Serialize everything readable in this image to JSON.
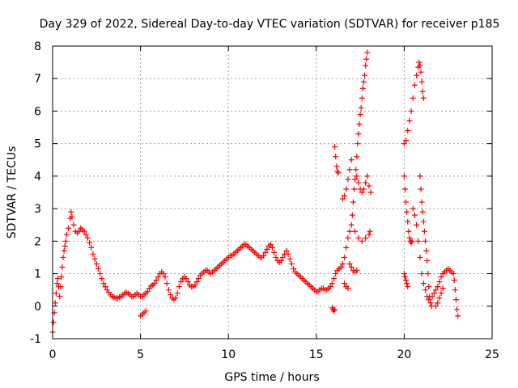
{
  "chart_data": {
    "type": "scatter",
    "title": "Day 329 of 2022, Sidereal Day-to-day VTEC variation (SDTVAR) for receiver p185",
    "xlabel": "GPS time / hours",
    "ylabel": "SDTVAR / TECUs",
    "xlim": [
      0,
      25
    ],
    "ylim": [
      -1,
      8
    ],
    "x_ticks": [
      0,
      5,
      10,
      15,
      20,
      25
    ],
    "y_ticks": [
      -1,
      0,
      1,
      2,
      3,
      4,
      5,
      6,
      7,
      8
    ],
    "x_tick_labels": [
      "0",
      "5",
      "10",
      "15",
      "20",
      "25"
    ],
    "y_tick_labels": [
      "-1",
      "0",
      "1",
      "2",
      "3",
      "4",
      "5",
      "6",
      "7",
      "8"
    ],
    "grid": true,
    "marker": "plus",
    "color": "#ff0000",
    "series": [
      {
        "name": "SDTVAR",
        "points": [
          [
            0.0,
            -0.8
          ],
          [
            0.05,
            -0.5
          ],
          [
            0.1,
            -0.2
          ],
          [
            0.15,
            0.1
          ],
          [
            0.2,
            0.4
          ],
          [
            0.25,
            0.7
          ],
          [
            0.3,
            0.85
          ],
          [
            0.35,
            0.6
          ],
          [
            0.4,
            0.3
          ],
          [
            0.45,
            0.6
          ],
          [
            0.5,
            0.9
          ],
          [
            0.55,
            1.2
          ],
          [
            0.6,
            1.5
          ],
          [
            0.65,
            1.7
          ],
          [
            0.7,
            1.85
          ],
          [
            0.75,
            2.0
          ],
          [
            0.8,
            2.2
          ],
          [
            0.9,
            2.4
          ],
          [
            1.0,
            2.7
          ],
          [
            1.05,
            2.9
          ],
          [
            1.1,
            2.75
          ],
          [
            1.2,
            2.5
          ],
          [
            1.3,
            2.3
          ],
          [
            1.4,
            2.25
          ],
          [
            1.5,
            2.3
          ],
          [
            1.6,
            2.4
          ],
          [
            1.7,
            2.35
          ],
          [
            1.8,
            2.3
          ],
          [
            1.9,
            2.2
          ],
          [
            2.0,
            2.1
          ],
          [
            2.1,
            1.95
          ],
          [
            2.2,
            1.8
          ],
          [
            2.3,
            1.6
          ],
          [
            2.4,
            1.45
          ],
          [
            2.5,
            1.3
          ],
          [
            2.6,
            1.15
          ],
          [
            2.7,
            1.0
          ],
          [
            2.8,
            0.85
          ],
          [
            2.9,
            0.7
          ],
          [
            3.0,
            0.6
          ],
          [
            3.1,
            0.5
          ],
          [
            3.2,
            0.42
          ],
          [
            3.3,
            0.35
          ],
          [
            3.4,
            0.3
          ],
          [
            3.5,
            0.27
          ],
          [
            3.6,
            0.25
          ],
          [
            3.7,
            0.25
          ],
          [
            3.8,
            0.28
          ],
          [
            3.9,
            0.3
          ],
          [
            4.0,
            0.35
          ],
          [
            4.1,
            0.4
          ],
          [
            4.2,
            0.42
          ],
          [
            4.3,
            0.4
          ],
          [
            4.4,
            0.35
          ],
          [
            4.5,
            0.3
          ],
          [
            4.6,
            0.3
          ],
          [
            4.7,
            0.35
          ],
          [
            4.8,
            0.4
          ],
          [
            4.9,
            0.35
          ],
          [
            5.0,
            0.3
          ],
          [
            5.1,
            0.3
          ],
          [
            5.2,
            0.35
          ],
          [
            5.3,
            0.4
          ],
          [
            5.4,
            0.45
          ],
          [
            5.5,
            0.55
          ],
          [
            5.6,
            0.62
          ],
          [
            5.7,
            0.65
          ],
          [
            5.8,
            0.7
          ],
          [
            5.9,
            0.8
          ],
          [
            6.0,
            0.9
          ],
          [
            6.1,
            1.0
          ],
          [
            6.2,
            1.05
          ],
          [
            6.3,
            1.0
          ],
          [
            6.4,
            0.9
          ],
          [
            6.5,
            0.7
          ],
          [
            6.6,
            0.5
          ],
          [
            6.7,
            0.35
          ],
          [
            6.8,
            0.25
          ],
          [
            6.9,
            0.2
          ],
          [
            7.0,
            0.25
          ],
          [
            7.1,
            0.4
          ],
          [
            7.2,
            0.6
          ],
          [
            7.3,
            0.75
          ],
          [
            7.4,
            0.85
          ],
          [
            7.5,
            0.9
          ],
          [
            7.6,
            0.85
          ],
          [
            7.7,
            0.75
          ],
          [
            7.8,
            0.65
          ],
          [
            7.9,
            0.6
          ],
          [
            8.0,
            0.6
          ],
          [
            8.1,
            0.65
          ],
          [
            8.2,
            0.75
          ],
          [
            8.3,
            0.85
          ],
          [
            8.4,
            0.95
          ],
          [
            8.5,
            1.0
          ],
          [
            8.6,
            1.05
          ],
          [
            8.7,
            1.1
          ],
          [
            8.8,
            1.1
          ],
          [
            8.9,
            1.05
          ],
          [
            9.0,
            1.0
          ],
          [
            9.1,
            1.05
          ],
          [
            9.2,
            1.1
          ],
          [
            9.3,
            1.15
          ],
          [
            9.4,
            1.2
          ],
          [
            9.5,
            1.25
          ],
          [
            9.6,
            1.3
          ],
          [
            9.7,
            1.35
          ],
          [
            9.8,
            1.4
          ],
          [
            9.9,
            1.45
          ],
          [
            10.0,
            1.5
          ],
          [
            10.1,
            1.55
          ],
          [
            10.2,
            1.55
          ],
          [
            10.3,
            1.6
          ],
          [
            10.4,
            1.65
          ],
          [
            10.5,
            1.7
          ],
          [
            10.6,
            1.75
          ],
          [
            10.7,
            1.8
          ],
          [
            10.8,
            1.85
          ],
          [
            10.9,
            1.9
          ],
          [
            11.0,
            1.9
          ],
          [
            11.1,
            1.85
          ],
          [
            11.2,
            1.8
          ],
          [
            11.3,
            1.75
          ],
          [
            11.4,
            1.7
          ],
          [
            11.5,
            1.65
          ],
          [
            11.6,
            1.6
          ],
          [
            11.7,
            1.55
          ],
          [
            11.8,
            1.5
          ],
          [
            11.9,
            1.5
          ],
          [
            12.0,
            1.55
          ],
          [
            12.1,
            1.65
          ],
          [
            12.2,
            1.75
          ],
          [
            12.3,
            1.85
          ],
          [
            12.4,
            1.9
          ],
          [
            12.5,
            1.8
          ],
          [
            12.6,
            1.65
          ],
          [
            12.7,
            1.5
          ],
          [
            12.8,
            1.4
          ],
          [
            12.9,
            1.35
          ],
          [
            13.0,
            1.4
          ],
          [
            13.1,
            1.5
          ],
          [
            13.2,
            1.6
          ],
          [
            13.3,
            1.7
          ],
          [
            13.4,
            1.6
          ],
          [
            13.5,
            1.45
          ],
          [
            13.6,
            1.3
          ],
          [
            13.7,
            1.15
          ],
          [
            13.8,
            1.05
          ],
          [
            13.9,
            1.0
          ],
          [
            14.0,
            0.95
          ],
          [
            14.1,
            0.9
          ],
          [
            14.2,
            0.85
          ],
          [
            14.3,
            0.8
          ],
          [
            14.4,
            0.75
          ],
          [
            14.5,
            0.7
          ],
          [
            14.6,
            0.65
          ],
          [
            14.7,
            0.6
          ],
          [
            14.8,
            0.55
          ],
          [
            14.9,
            0.5
          ],
          [
            15.0,
            0.45
          ],
          [
            15.1,
            0.45
          ],
          [
            15.2,
            0.5
          ],
          [
            15.3,
            0.55
          ],
          [
            15.4,
            0.55
          ],
          [
            15.5,
            0.5
          ],
          [
            15.6,
            0.5
          ],
          [
            15.7,
            0.55
          ],
          [
            15.8,
            0.6
          ],
          [
            15.9,
            0.7
          ],
          [
            16.0,
            0.85
          ],
          [
            16.1,
            1.0
          ],
          [
            16.2,
            1.1
          ],
          [
            16.3,
            1.15
          ],
          [
            16.4,
            1.2
          ],
          [
            16.5,
            1.3
          ],
          [
            16.6,
            1.5
          ],
          [
            16.7,
            1.8
          ],
          [
            16.8,
            2.1
          ],
          [
            16.9,
            2.3
          ],
          [
            17.0,
            2.5
          ],
          [
            17.05,
            2.8
          ],
          [
            17.1,
            3.2
          ],
          [
            17.15,
            3.6
          ],
          [
            17.2,
            3.9
          ],
          [
            17.25,
            4.2
          ],
          [
            17.3,
            4.6
          ],
          [
            17.35,
            5.0
          ],
          [
            17.4,
            5.3
          ],
          [
            17.45,
            5.6
          ],
          [
            17.5,
            5.9
          ],
          [
            17.55,
            6.1
          ],
          [
            17.6,
            6.4
          ],
          [
            17.65,
            6.7
          ],
          [
            17.7,
            6.9
          ],
          [
            17.75,
            7.1
          ],
          [
            17.8,
            7.4
          ],
          [
            17.85,
            7.6
          ],
          [
            17.9,
            7.8
          ],
          [
            17.3,
            4.0
          ],
          [
            17.4,
            3.8
          ],
          [
            17.5,
            3.6
          ],
          [
            17.6,
            3.5
          ],
          [
            17.7,
            3.6
          ],
          [
            17.8,
            3.8
          ],
          [
            17.9,
            4.0
          ],
          [
            18.0,
            3.7
          ],
          [
            18.1,
            3.5
          ],
          [
            17.0,
            4.5
          ],
          [
            16.9,
            4.2
          ],
          [
            16.8,
            3.9
          ],
          [
            16.7,
            3.6
          ],
          [
            16.6,
            3.4
          ],
          [
            16.5,
            3.3
          ],
          [
            17.2,
            2.3
          ],
          [
            17.4,
            2.1
          ],
          [
            17.6,
            2.0
          ],
          [
            17.8,
            2.1
          ],
          [
            18.0,
            2.2
          ],
          [
            18.05,
            2.3
          ],
          [
            16.9,
            1.3
          ],
          [
            17.0,
            1.2
          ],
          [
            17.1,
            1.1
          ],
          [
            17.2,
            1.05
          ],
          [
            17.3,
            1.1
          ],
          [
            16.05,
            4.9
          ],
          [
            16.1,
            4.6
          ],
          [
            16.15,
            4.3
          ],
          [
            16.2,
            4.15
          ],
          [
            16.25,
            4.1
          ],
          [
            16.6,
            0.7
          ],
          [
            16.7,
            0.6
          ],
          [
            16.8,
            0.55
          ],
          [
            15.9,
            -0.05
          ],
          [
            15.95,
            -0.1
          ],
          [
            16.0,
            -0.15
          ],
          [
            16.05,
            -0.1
          ],
          [
            5.0,
            -0.3
          ],
          [
            5.1,
            -0.25
          ],
          [
            5.2,
            -0.2
          ],
          [
            5.3,
            -0.15
          ],
          [
            20.0,
            4.0
          ],
          [
            20.05,
            3.6
          ],
          [
            20.1,
            3.2
          ],
          [
            20.15,
            2.9
          ],
          [
            20.2,
            2.6
          ],
          [
            20.25,
            2.3
          ],
          [
            20.3,
            2.1
          ],
          [
            20.35,
            2.0
          ],
          [
            20.4,
            1.95
          ],
          [
            20.45,
            2.0
          ],
          [
            20.0,
            1.0
          ],
          [
            20.05,
            0.9
          ],
          [
            20.1,
            0.8
          ],
          [
            20.15,
            0.7
          ],
          [
            20.2,
            0.6
          ],
          [
            20.0,
            5.0
          ],
          [
            20.1,
            5.1
          ],
          [
            20.2,
            5.4
          ],
          [
            20.3,
            5.7
          ],
          [
            20.4,
            6.0
          ],
          [
            20.5,
            6.4
          ],
          [
            20.6,
            6.8
          ],
          [
            20.7,
            7.1
          ],
          [
            20.8,
            7.35
          ],
          [
            20.85,
            7.5
          ],
          [
            20.9,
            7.4
          ],
          [
            20.95,
            7.2
          ],
          [
            21.0,
            6.9
          ],
          [
            21.05,
            6.6
          ],
          [
            21.1,
            6.4
          ],
          [
            20.9,
            4.0
          ],
          [
            20.95,
            3.6
          ],
          [
            21.0,
            3.2
          ],
          [
            21.05,
            2.9
          ],
          [
            21.1,
            2.6
          ],
          [
            21.15,
            2.3
          ],
          [
            21.2,
            2.0
          ],
          [
            21.25,
            1.7
          ],
          [
            21.3,
            1.4
          ],
          [
            21.35,
            1.0
          ],
          [
            21.4,
            0.6
          ],
          [
            21.45,
            0.3
          ],
          [
            21.5,
            0.1
          ],
          [
            21.55,
            0.0
          ],
          [
            20.5,
            3.0
          ],
          [
            20.6,
            2.8
          ],
          [
            20.7,
            2.5
          ],
          [
            20.8,
            2.0
          ],
          [
            20.9,
            1.5
          ],
          [
            21.0,
            1.0
          ],
          [
            21.1,
            0.7
          ],
          [
            21.2,
            0.5
          ],
          [
            21.3,
            0.3
          ],
          [
            21.4,
            0.2
          ],
          [
            21.6,
            0.3
          ],
          [
            21.7,
            0.4
          ],
          [
            21.8,
            0.5
          ],
          [
            21.9,
            0.6
          ],
          [
            22.0,
            0.75
          ],
          [
            22.1,
            0.9
          ],
          [
            22.2,
            1.0
          ],
          [
            22.3,
            1.05
          ],
          [
            22.4,
            1.1
          ],
          [
            22.5,
            1.15
          ],
          [
            22.6,
            1.1
          ],
          [
            22.7,
            1.05
          ],
          [
            22.8,
            1.0
          ],
          [
            22.85,
            0.8
          ],
          [
            22.9,
            0.5
          ],
          [
            22.95,
            0.2
          ],
          [
            23.0,
            -0.1
          ],
          [
            23.05,
            -0.3
          ],
          [
            21.8,
            0.0
          ],
          [
            21.9,
            0.1
          ],
          [
            22.0,
            0.25
          ],
          [
            22.1,
            0.4
          ],
          [
            22.2,
            0.55
          ]
        ]
      }
    ]
  }
}
